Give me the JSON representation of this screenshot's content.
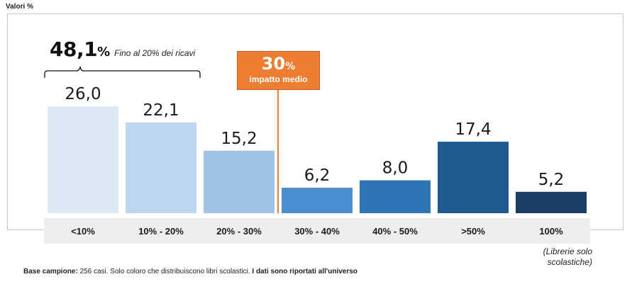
{
  "unit_label": "Valori %",
  "chart_data": {
    "type": "bar",
    "categories": [
      "<10%",
      "10% - 20%",
      "20% - 30%",
      "30% - 40%",
      "40% - 50%",
      ">50%",
      "100%"
    ],
    "values": [
      26.0,
      22.1,
      15.2,
      6.2,
      8.0,
      17.4,
      5.2
    ],
    "value_labels": [
      "26,0",
      "22,1",
      "15,2",
      "6,2",
      "8,0",
      "17,4",
      "5,2"
    ],
    "ylim": [
      0,
      30
    ],
    "colors": [
      "#dde8f5",
      "#bdd7ee",
      "#9dc3e6",
      "#4a90d0",
      "#2e75b6",
      "#1f5a8e",
      "#1a3f66"
    ],
    "axis_band_color": "#eeeeee"
  },
  "callout_left": {
    "value": "48,1",
    "unit": "%",
    "text": "Fino al 20% dei ricavi"
  },
  "callout_impact": {
    "value": "30",
    "unit": "%",
    "text": "impatto medio",
    "color": "#ed7d31"
  },
  "note_100": "(Librerie solo scolastiche)",
  "footer": {
    "label": "Base campione:",
    "text": "256 casi. Solo coloro che distribuiscono libri scolastici.",
    "bold_text": "I dati sono riportati all'universo"
  }
}
